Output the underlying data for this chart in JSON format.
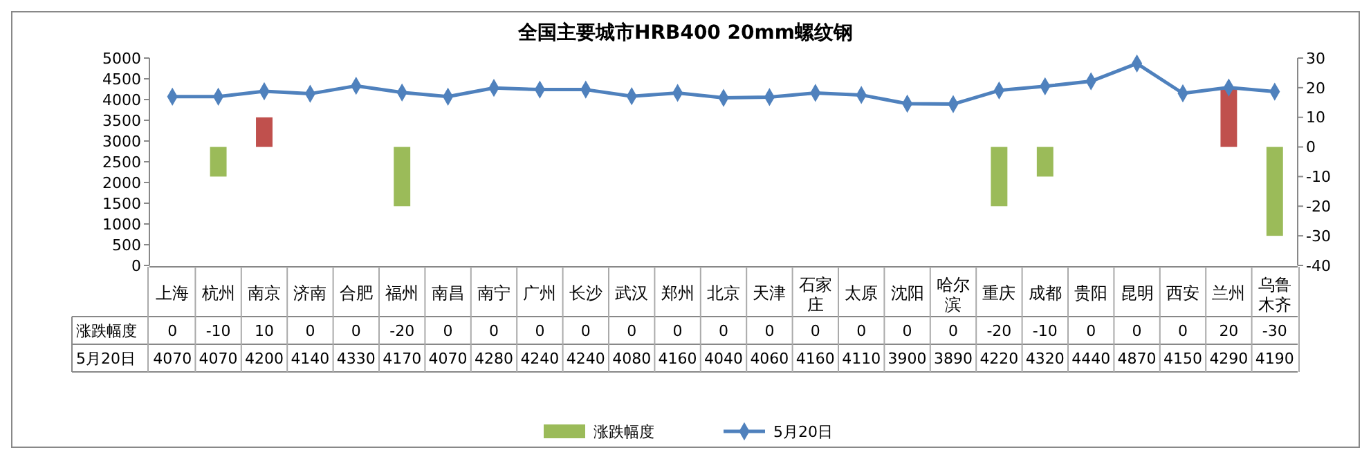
{
  "chart_data": {
    "type": "bar",
    "title": "全国主要城市HRB400 20mm螺纹钢",
    "categories": [
      "上海",
      "杭州",
      "南京",
      "济南",
      "合肥",
      "福州",
      "南昌",
      "南宁",
      "广州",
      "长沙",
      "武汉",
      "郑州",
      "北京",
      "天津",
      "石家庄",
      "太原",
      "沈阳",
      "哈尔滨",
      "重庆",
      "成都",
      "贵阳",
      "昆明",
      "西安",
      "兰州",
      "乌鲁木齐"
    ],
    "series": [
      {
        "name": "涨跌幅度",
        "axis": "y2",
        "color": "#9bbb59",
        "colors": [
          "#9bbb59",
          "#9bbb59",
          "#c0504d",
          "#9bbb59",
          "#9bbb59",
          "#9bbb59",
          "#9bbb59",
          "#9bbb59",
          "#9bbb59",
          "#9bbb59",
          "#9bbb59",
          "#9bbb59",
          "#9bbb59",
          "#9bbb59",
          "#9bbb59",
          "#9bbb59",
          "#9bbb59",
          "#9bbb59",
          "#9bbb59",
          "#9bbb59",
          "#9bbb59",
          "#9bbb59",
          "#9bbb59",
          "#c0504d",
          "#9bbb59"
        ],
        "values": [
          0,
          -10,
          10,
          0,
          0,
          -20,
          0,
          0,
          0,
          0,
          0,
          0,
          0,
          0,
          0,
          0,
          0,
          0,
          -20,
          -10,
          0,
          0,
          0,
          20,
          -30
        ]
      },
      {
        "name": "5月20日",
        "type": "line",
        "color": "#4f81bd",
        "marker": "diamond",
        "values": [
          4070,
          4070,
          4200,
          4140,
          4330,
          4170,
          4070,
          4280,
          4240,
          4240,
          4080,
          4160,
          4040,
          4060,
          4160,
          4110,
          3900,
          3890,
          4220,
          4320,
          4440,
          4870,
          4150,
          4290,
          4190
        ]
      }
    ],
    "ylim": [
      0,
      5000
    ],
    "yticks": [
      0,
      500,
      1000,
      1500,
      2000,
      2500,
      3000,
      3500,
      4000,
      4500,
      5000
    ],
    "y2lim": [
      -40,
      30
    ],
    "y2ticks": [
      -40,
      -30,
      -20,
      -10,
      0,
      10,
      20,
      30
    ],
    "data_labels": true,
    "legend": "bottom",
    "grid": false
  }
}
